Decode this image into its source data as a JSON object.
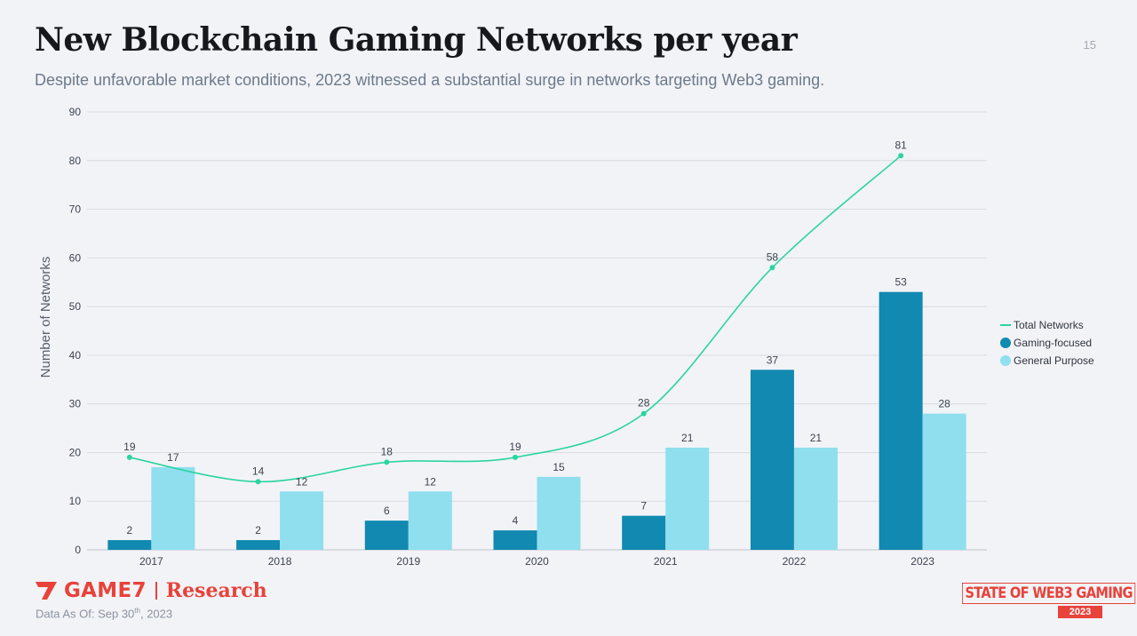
{
  "header": {
    "title": "New Blockchain Gaming Networks per year",
    "subtitle": "Despite unfavorable market conditions, 2023 witnessed a substantial surge in networks targeting Web3 gaming.",
    "page_number": "15"
  },
  "footer": {
    "brand": "GAME7",
    "brand_suffix": "Research",
    "data_as_of_prefix": "Data As Of: Sep 30",
    "data_as_of_sup": "th",
    "data_as_of_suffix": ", 2023",
    "badge_text": "STATE OF WEB3 GAMING",
    "badge_year": "2023"
  },
  "colors": {
    "gaming": "#1189b0",
    "general": "#8fdfee",
    "total": "#2bd4a2",
    "grid": "#d9dce2",
    "accent": "#e8423a"
  },
  "chart_data": {
    "type": "bar",
    "categories": [
      "2017",
      "2018",
      "2019",
      "2020",
      "2021",
      "2022",
      "2023"
    ],
    "series": [
      {
        "name": "Gaming-focused",
        "type": "bar",
        "values": [
          2,
          2,
          6,
          4,
          7,
          37,
          53
        ]
      },
      {
        "name": "General Purpose",
        "type": "bar",
        "values": [
          17,
          12,
          12,
          15,
          21,
          21,
          28
        ]
      },
      {
        "name": "Total Networks",
        "type": "line",
        "values": [
          19,
          14,
          18,
          19,
          28,
          58,
          81
        ]
      }
    ],
    "title": "New Blockchain Gaming Networks per year",
    "xlabel": "",
    "ylabel": "Number of Networks",
    "ylim": [
      0,
      90
    ],
    "yticks": [
      0,
      10,
      20,
      30,
      40,
      50,
      60,
      70,
      80,
      90
    ],
    "grid": true,
    "legend": "right"
  }
}
